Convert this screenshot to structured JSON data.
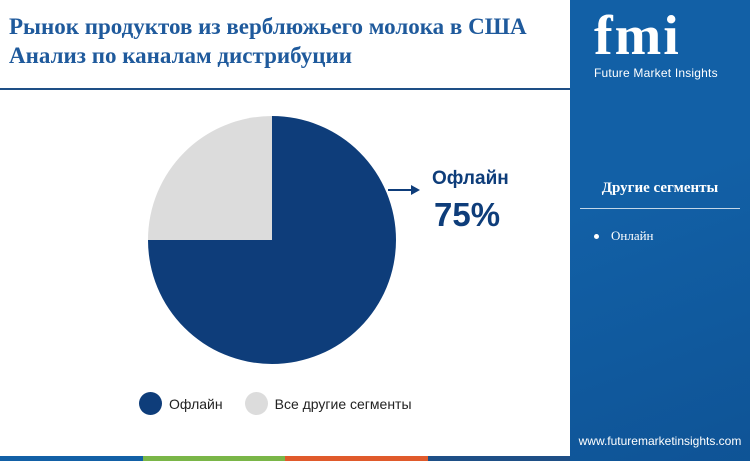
{
  "header": {
    "title": "Рынок продуктов из верблюжьего молока в США Анализ по каналам дистрибуции"
  },
  "chart_data": {
    "type": "pie",
    "categories": [
      "Офлайн",
      "Все другие сегменты"
    ],
    "values": [
      75,
      25
    ],
    "colors": [
      "#0e3d7a",
      "#dcdcdc"
    ],
    "legend_position": "bottom",
    "callout": {
      "label": "Офлайн",
      "value": "75%"
    }
  },
  "legend": {
    "items": [
      {
        "label": "Офлайн",
        "color": "#0e3d7a"
      },
      {
        "label": "Все другие сегменты",
        "color": "#dcdcdc"
      }
    ]
  },
  "sidebar": {
    "logo_letters": "fmi",
    "logo_subtitle": "Future Market Insights",
    "heading": "Другие сегменты",
    "items": [
      "Онлайн"
    ],
    "website": "www.futuremarketinsights.com"
  },
  "bottom_bar_colors": [
    "#1260a6",
    "#7ab648",
    "#e05a2b",
    "#1e4f86"
  ]
}
